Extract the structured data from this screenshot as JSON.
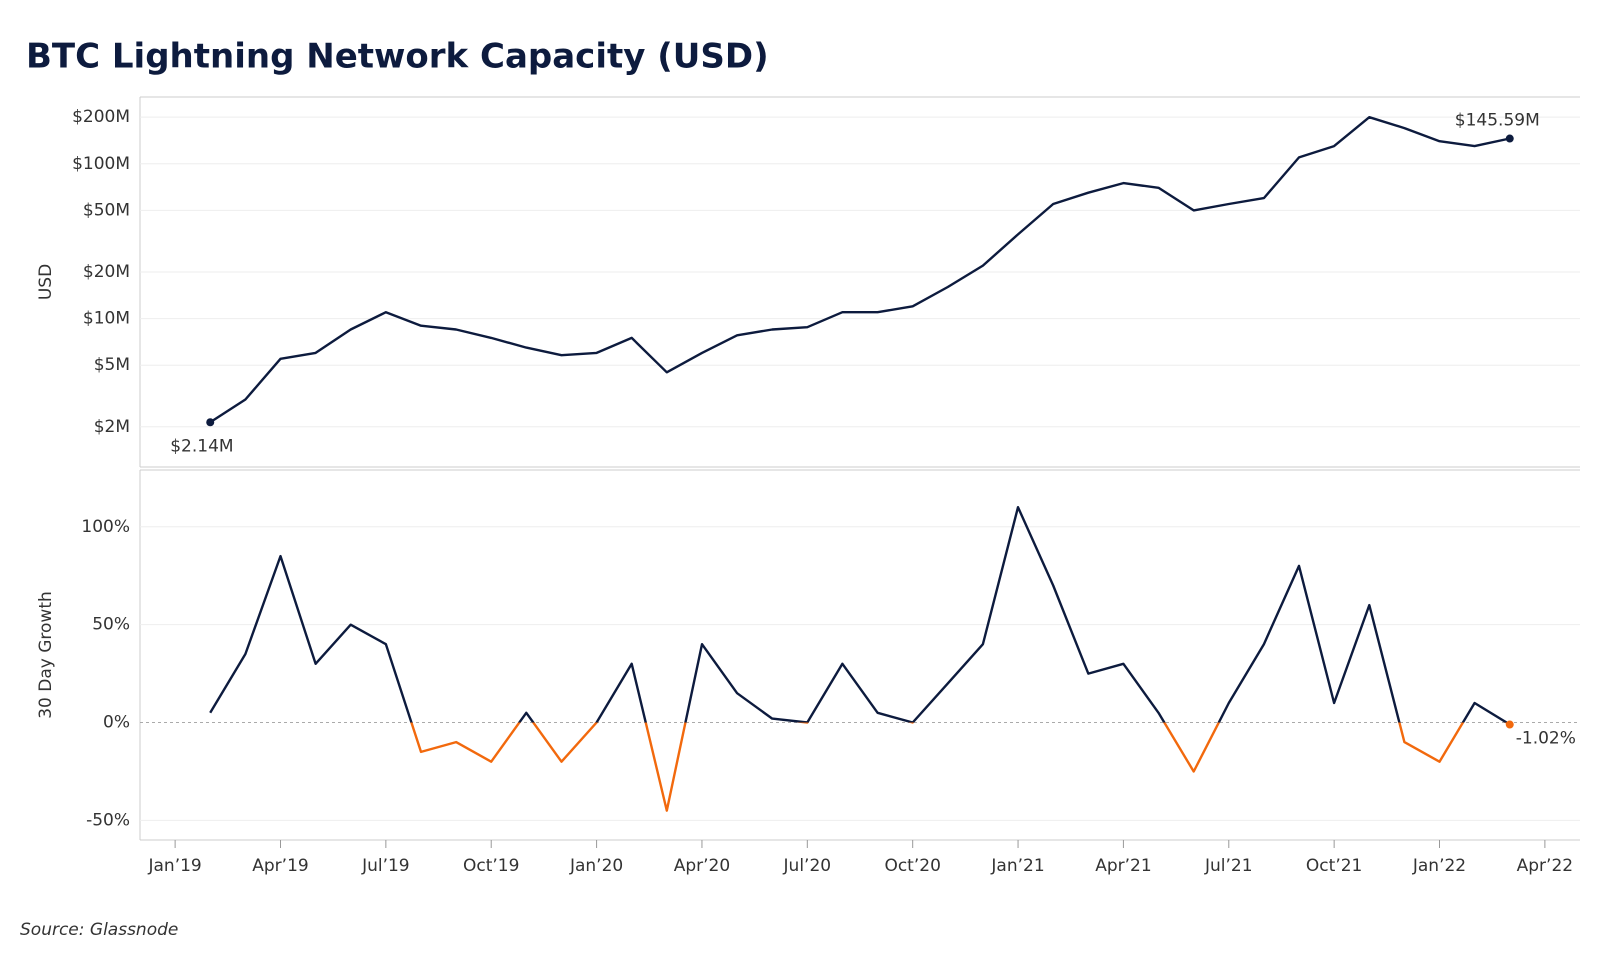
{
  "title": "BTC Lightning Network Capacity (USD)",
  "source": "Source: Glassnode",
  "chart_data": [
    {
      "type": "line",
      "ylabel": "USD",
      "yscale": "log",
      "grid": true,
      "color": "#0d1b3e",
      "x": [
        "2019-02",
        "2019-03",
        "2019-04",
        "2019-05",
        "2019-06",
        "2019-07",
        "2019-08",
        "2019-09",
        "2019-10",
        "2019-11",
        "2019-12",
        "2020-01",
        "2020-02",
        "2020-03",
        "2020-04",
        "2020-05",
        "2020-06",
        "2020-07",
        "2020-08",
        "2020-09",
        "2020-10",
        "2020-11",
        "2020-12",
        "2021-01",
        "2021-02",
        "2021-03",
        "2021-04",
        "2021-05",
        "2021-06",
        "2021-07",
        "2021-08",
        "2021-09",
        "2021-10",
        "2021-11",
        "2021-12",
        "2022-01",
        "2022-02",
        "2022-03"
      ],
      "values": [
        2140000,
        3000000,
        5500000,
        6000000,
        8500000,
        11000000,
        9000000,
        8500000,
        7500000,
        6500000,
        5800000,
        6000000,
        7500000,
        4500000,
        6000000,
        7800000,
        8500000,
        8800000,
        11000000,
        11000000,
        12000000,
        16000000,
        22000000,
        35000000,
        55000000,
        65000000,
        75000000,
        70000000,
        50000000,
        55000000,
        60000000,
        110000000,
        130000000,
        200000000,
        170000000,
        140000000,
        130000000,
        145590000
      ],
      "value_labels": [
        "$2.14M",
        null,
        null,
        null,
        null,
        null,
        null,
        null,
        null,
        null,
        null,
        null,
        null,
        null,
        null,
        null,
        null,
        null,
        null,
        null,
        null,
        null,
        null,
        null,
        null,
        null,
        null,
        null,
        null,
        null,
        null,
        null,
        null,
        null,
        null,
        null,
        null,
        "$145.59M"
      ],
      "xlim": [
        "2018-12",
        "2022-05"
      ],
      "ylim": [
        1100000,
        270000000
      ],
      "yticks": [
        {
          "value": 2000000,
          "label": "$2M"
        },
        {
          "value": 5000000,
          "label": "$5M"
        },
        {
          "value": 10000000,
          "label": "$10M"
        },
        {
          "value": 20000000,
          "label": "$20M"
        },
        {
          "value": 50000000,
          "label": "$50M"
        },
        {
          "value": 100000000,
          "label": "$100M"
        },
        {
          "value": 200000000,
          "label": "$200M"
        }
      ]
    },
    {
      "type": "line",
      "ylabel": "30 Day Growth",
      "grid": true,
      "color": "#0d1b3e",
      "negative_color": "#f2690d",
      "x": [
        "2019-02",
        "2019-03",
        "2019-04",
        "2019-05",
        "2019-06",
        "2019-07",
        "2019-08",
        "2019-09",
        "2019-10",
        "2019-11",
        "2019-12",
        "2020-01",
        "2020-02",
        "2020-03",
        "2020-04",
        "2020-05",
        "2020-06",
        "2020-07",
        "2020-08",
        "2020-09",
        "2020-10",
        "2020-11",
        "2020-12",
        "2021-01",
        "2021-02",
        "2021-03",
        "2021-04",
        "2021-05",
        "2021-06",
        "2021-07",
        "2021-08",
        "2021-09",
        "2021-10",
        "2021-11",
        "2021-12",
        "2022-01",
        "2022-02",
        "2022-03"
      ],
      "values": [
        5,
        35,
        85,
        30,
        50,
        40,
        -15,
        -10,
        -20,
        5,
        -20,
        0,
        30,
        -45,
        40,
        15,
        2,
        0,
        30,
        5,
        0,
        20,
        40,
        110,
        70,
        25,
        30,
        5,
        -25,
        10,
        40,
        80,
        10,
        60,
        -10,
        -20,
        10,
        -1.02
      ],
      "value_labels": [
        null,
        null,
        null,
        null,
        null,
        null,
        null,
        null,
        null,
        null,
        null,
        null,
        null,
        null,
        null,
        null,
        null,
        null,
        null,
        null,
        null,
        null,
        null,
        null,
        null,
        null,
        null,
        null,
        null,
        null,
        null,
        null,
        null,
        null,
        null,
        null,
        null,
        "-1.02%"
      ],
      "xlim": [
        "2018-12",
        "2022-05"
      ],
      "ylim": [
        -60,
        129
      ],
      "yticks": [
        {
          "value": -50,
          "label": "-50%"
        },
        {
          "value": 0,
          "label": "0%"
        },
        {
          "value": 50,
          "label": "50%"
        },
        {
          "value": 100,
          "label": "100%"
        }
      ],
      "xticks": [
        {
          "value": "2019-01",
          "label": "Jan’19"
        },
        {
          "value": "2019-04",
          "label": "Apr’19"
        },
        {
          "value": "2019-07",
          "label": "Jul’19"
        },
        {
          "value": "2019-10",
          "label": "Oct’19"
        },
        {
          "value": "2020-01",
          "label": "Jan’20"
        },
        {
          "value": "2020-04",
          "label": "Apr’20"
        },
        {
          "value": "2020-07",
          "label": "Jul’20"
        },
        {
          "value": "2020-10",
          "label": "Oct’20"
        },
        {
          "value": "2021-01",
          "label": "Jan’21"
        },
        {
          "value": "2021-04",
          "label": "Apr’21"
        },
        {
          "value": "2021-07",
          "label": "Jul’21"
        },
        {
          "value": "2021-10",
          "label": "Oct’21"
        },
        {
          "value": "2022-01",
          "label": "Jan’22"
        },
        {
          "value": "2022-04",
          "label": "Apr’22"
        }
      ]
    }
  ]
}
